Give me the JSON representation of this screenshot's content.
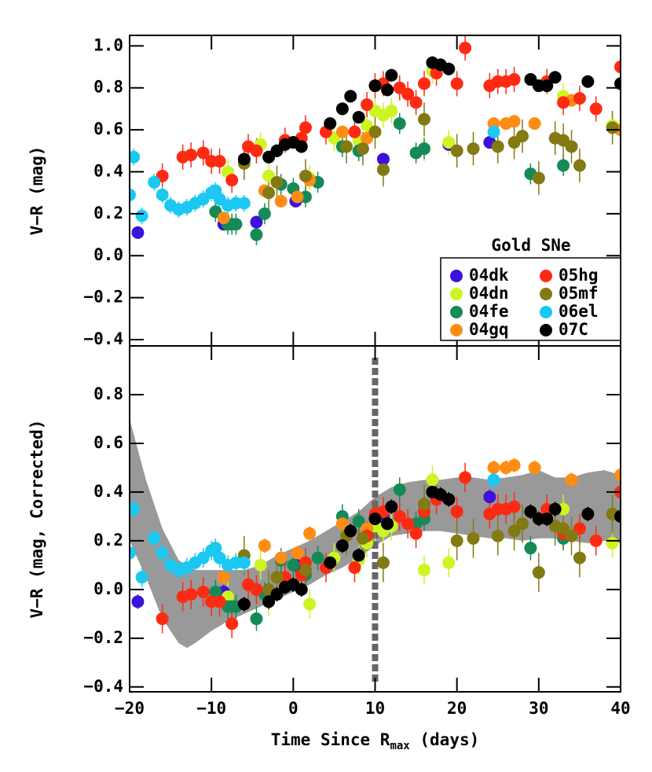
{
  "chart_data": [
    {
      "type": "scatter",
      "ylabel": "V−R (mag)",
      "xlim": [
        -20,
        40
      ],
      "xticks": [
        -20,
        -10,
        0,
        10,
        20,
        30,
        40
      ],
      "xtick_labels": false,
      "ylim": [
        -0.43,
        1.05
      ],
      "yticks": [
        {
          "value": -0.4,
          "label": "−0.4"
        },
        {
          "value": -0.2,
          "label": "−0.2"
        },
        {
          "value": 0,
          "label": "0.0"
        },
        0.2,
        0.4,
        0.6,
        0.8,
        {
          "value": 1,
          "label": "1.0"
        }
      ],
      "legend_title": "Gold SNe",
      "legend": "lower right",
      "series": [
        {
          "name": "04dk",
          "color": "#3c12dc",
          "error": 0.03,
          "x": [
            -19,
            -8.5,
            -4.5,
            0.3,
            11,
            16,
            19,
            24
          ],
          "values": [
            0.11,
            0.15,
            0.16,
            0.26,
            0.46,
            0.51,
            0.53,
            0.54
          ]
        },
        {
          "name": "04dn",
          "color": "#ccf522",
          "error": 0.06,
          "x": [
            -8,
            -4,
            -3,
            2,
            5,
            8,
            9,
            10,
            11,
            12,
            16,
            17,
            19,
            33,
            39
          ],
          "values": [
            0.4,
            0.53,
            0.38,
            0.37,
            0.56,
            0.55,
            0.62,
            0.69,
            0.67,
            0.69,
            0.51,
            0.88,
            0.54,
            0.76,
            0.62
          ]
        },
        {
          "name": "04fe",
          "color": "#168a56",
          "error": 0.05,
          "x": [
            -9.5,
            -8,
            -7.5,
            -7,
            -4.5,
            -3.5,
            -1.5,
            0,
            1.5,
            3,
            6,
            8,
            13,
            15,
            16,
            29,
            33
          ],
          "values": [
            0.21,
            0.15,
            0.15,
            0.15,
            0.1,
            0.2,
            0.34,
            0.32,
            0.28,
            0.35,
            0.52,
            0.5,
            0.63,
            0.49,
            0.51,
            0.39,
            0.43
          ]
        },
        {
          "name": "04gq",
          "color": "#ff8c14",
          "error": 0.03,
          "x": [
            -8.5,
            -3.5,
            -1.5,
            0.5,
            2,
            6,
            9,
            24.5,
            26,
            27,
            29.5,
            34,
            40
          ],
          "values": [
            0.18,
            0.31,
            0.26,
            0.28,
            0.36,
            0.59,
            0.56,
            0.63,
            0.63,
            0.64,
            0.63,
            0.74,
            0.6
          ]
        },
        {
          "name": "05hg",
          "color": "#ff2a12",
          "error": 0.06,
          "x": [
            -16,
            -13.5,
            -12.5,
            -11,
            -10,
            -9,
            -7.5,
            -5.5,
            -4.5,
            -1,
            1,
            1.5,
            4,
            7.5,
            9,
            10,
            11,
            13,
            14,
            15,
            16,
            17.5,
            20,
            21,
            24,
            25,
            26,
            27,
            31,
            33,
            35,
            37,
            40
          ],
          "values": [
            0.38,
            0.47,
            0.48,
            0.49,
            0.45,
            0.45,
            0.36,
            0.52,
            0.5,
            0.55,
            0.56,
            0.61,
            0.59,
            0.59,
            0.72,
            0.81,
            0.82,
            0.8,
            0.77,
            0.73,
            0.82,
            0.87,
            0.82,
            0.99,
            0.81,
            0.83,
            0.83,
            0.84,
            0.83,
            0.73,
            0.75,
            0.7,
            0.9
          ]
        },
        {
          "name": "05mf",
          "color": "#827a12",
          "error": 0.08,
          "x": [
            -6,
            -3,
            -2,
            1.5,
            6.5,
            8.5,
            10,
            11,
            16,
            20,
            22,
            25,
            27,
            28,
            30,
            32,
            33,
            34,
            35,
            39
          ],
          "values": [
            0.44,
            0.3,
            0.35,
            0.38,
            0.52,
            0.51,
            0.59,
            0.41,
            0.65,
            0.5,
            0.51,
            0.52,
            0.54,
            0.57,
            0.37,
            0.56,
            0.55,
            0.52,
            0.43,
            0.61
          ]
        },
        {
          "name": "06el",
          "color": "#1ac8f2",
          "error": 0.04,
          "x": [
            -20,
            -19.5,
            -18.5,
            -17,
            -16,
            -15,
            -14,
            -13,
            -12,
            -11,
            -10,
            -9.5,
            -9,
            -8,
            -7,
            -6,
            24.5
          ],
          "values": [
            0.29,
            0.47,
            0.19,
            0.35,
            0.29,
            0.24,
            0.22,
            0.23,
            0.25,
            0.27,
            0.3,
            0.31,
            0.27,
            0.24,
            0.25,
            0.25,
            0.59
          ]
        },
        {
          "name": "07C",
          "color": "#000000",
          "error": 0.03,
          "x": [
            -6,
            -3,
            -2,
            -1,
            0,
            1,
            4.5,
            6,
            7,
            8,
            10,
            11.5,
            12,
            17,
            18,
            19,
            29,
            30,
            31,
            32,
            36,
            40
          ],
          "values": [
            0.46,
            0.47,
            0.5,
            0.53,
            0.54,
            0.52,
            0.63,
            0.7,
            0.76,
            0.66,
            0.81,
            0.79,
            0.86,
            0.92,
            0.91,
            0.89,
            0.84,
            0.81,
            0.81,
            0.85,
            0.83,
            0.82
          ]
        }
      ]
    },
    {
      "type": "scatter",
      "ylabel": "V−R (mag, Corrected)",
      "xlabel": [
        "Time Since R",
        "max",
        " (days)"
      ],
      "xlim": [
        -20,
        40
      ],
      "xticks": [
        {
          "value": -20,
          "label": "−20"
        },
        {
          "value": -10,
          "label": "−10"
        },
        0,
        10,
        20,
        30,
        40
      ],
      "xtick_labels": true,
      "ylim": [
        -0.42,
        1.0
      ],
      "yticks": [
        {
          "value": -0.4,
          "label": "−0.4"
        },
        {
          "value": -0.2,
          "label": "−0.2"
        },
        {
          "value": 0,
          "label": "0.0"
        },
        0.2,
        0.4,
        0.6,
        0.8
      ],
      "vline": 10,
      "band": {
        "color": "#999999",
        "x": [
          -20,
          -18,
          -16,
          -14,
          -13,
          -12,
          -10,
          -8,
          -6,
          -4,
          -2,
          0,
          2,
          4,
          6,
          8,
          10,
          12,
          14,
          16,
          18,
          20,
          22,
          24,
          26,
          28,
          30,
          32,
          34,
          36,
          38,
          40
        ],
        "upper": [
          0.7,
          0.45,
          0.25,
          0.12,
          0.1,
          0.08,
          0.08,
          0.08,
          0.08,
          0.1,
          0.14,
          0.17,
          0.2,
          0.24,
          0.28,
          0.32,
          0.38,
          0.42,
          0.44,
          0.45,
          0.45,
          0.46,
          0.46,
          0.45,
          0.46,
          0.47,
          0.49,
          0.46,
          0.46,
          0.48,
          0.49,
          0.47
        ],
        "lower": [
          0.2,
          0.05,
          -0.12,
          -0.22,
          -0.24,
          -0.22,
          -0.17,
          -0.13,
          -0.1,
          -0.07,
          -0.04,
          -0.01,
          0.02,
          0.06,
          0.09,
          0.13,
          0.18,
          0.22,
          0.23,
          0.24,
          0.24,
          0.23,
          0.22,
          0.21,
          0.21,
          0.2,
          0.21,
          0.21,
          0.2,
          0.19,
          0.2,
          0.19
        ]
      },
      "series": [
        {
          "name": "04dk",
          "color": "#3c12dc",
          "error": 0.03,
          "x": [
            -19,
            -8.5,
            -4.5,
            0.3,
            11,
            16,
            19,
            24
          ],
          "values": [
            -0.05,
            -0.01,
            0.0,
            0.1,
            0.3,
            0.35,
            0.37,
            0.38
          ]
        },
        {
          "name": "04dn",
          "color": "#ccf522",
          "error": 0.06,
          "x": [
            -8,
            -4,
            -3,
            2,
            5,
            8,
            9,
            10,
            11,
            12,
            16,
            17,
            19,
            33,
            39
          ],
          "values": [
            -0.03,
            0.1,
            -0.05,
            -0.06,
            0.13,
            0.12,
            0.19,
            0.26,
            0.24,
            0.26,
            0.08,
            0.45,
            0.11,
            0.33,
            0.19
          ]
        },
        {
          "name": "04fe",
          "color": "#168a56",
          "error": 0.05,
          "x": [
            -9.5,
            -8,
            -7.5,
            -7,
            -4.5,
            -3.5,
            -1.5,
            0,
            1.5,
            3,
            6,
            8,
            13,
            15,
            16,
            29,
            33
          ],
          "values": [
            -0.01,
            -0.07,
            -0.07,
            -0.07,
            -0.12,
            -0.02,
            0.12,
            0.1,
            0.06,
            0.13,
            0.3,
            0.28,
            0.41,
            0.27,
            0.29,
            0.17,
            0.21
          ]
        },
        {
          "name": "04gq",
          "color": "#ff8c14",
          "error": 0.03,
          "x": [
            -8.5,
            -3.5,
            -1.5,
            0.5,
            2,
            6,
            9,
            24.5,
            26,
            27,
            29.5,
            34,
            40
          ],
          "values": [
            0.05,
            0.18,
            0.13,
            0.15,
            0.23,
            0.27,
            0.25,
            0.5,
            0.5,
            0.51,
            0.5,
            0.45,
            0.47
          ]
        },
        {
          "name": "05hg",
          "color": "#ff2a12",
          "error": 0.06,
          "x": [
            -16,
            -13.5,
            -12.5,
            -11,
            -10,
            -9,
            -7.5,
            -5.5,
            -4.5,
            -1,
            1,
            1.5,
            4,
            7.5,
            9,
            10,
            11,
            13,
            14,
            15,
            16,
            17.5,
            20,
            21,
            24,
            25,
            26,
            27,
            31,
            33,
            35,
            37,
            40
          ],
          "values": [
            -0.12,
            -0.03,
            -0.02,
            -0.01,
            -0.05,
            -0.05,
            -0.14,
            0.02,
            0.0,
            0.05,
            0.06,
            0.11,
            0.09,
            0.09,
            0.22,
            0.31,
            0.32,
            0.3,
            0.27,
            0.23,
            0.32,
            0.37,
            0.32,
            0.46,
            0.31,
            0.33,
            0.33,
            0.34,
            0.33,
            0.23,
            0.25,
            0.2,
            0.4
          ]
        },
        {
          "name": "05mf",
          "color": "#827a12",
          "error": 0.08,
          "x": [
            -6,
            -3,
            -2,
            1.5,
            6.5,
            8.5,
            10,
            11,
            16,
            20,
            22,
            25,
            27,
            28,
            30,
            32,
            33,
            34,
            35,
            39
          ],
          "values": [
            0.14,
            0.0,
            0.05,
            0.08,
            0.22,
            0.21,
            0.29,
            0.11,
            0.35,
            0.2,
            0.21,
            0.22,
            0.24,
            0.27,
            0.07,
            0.26,
            0.25,
            0.22,
            0.13,
            0.31
          ]
        },
        {
          "name": "06el",
          "color": "#1ac8f2",
          "error": 0.04,
          "x": [
            -20,
            -19.5,
            -18.5,
            -17,
            -16,
            -15,
            -14,
            -13,
            -12,
            -11,
            -10,
            -9.5,
            -9,
            -8,
            -7,
            -6,
            24.5
          ],
          "values": [
            0.15,
            0.33,
            0.05,
            0.21,
            0.15,
            0.1,
            0.08,
            0.09,
            0.11,
            0.13,
            0.16,
            0.17,
            0.13,
            0.1,
            0.11,
            0.11,
            0.45
          ]
        },
        {
          "name": "07C",
          "color": "#000000",
          "error": 0.03,
          "x": [
            -6,
            -3,
            -2,
            -1,
            0,
            1,
            4.5,
            6,
            7,
            8,
            10,
            11.5,
            12,
            17,
            18,
            19,
            29,
            30,
            31,
            32,
            36,
            40
          ],
          "values": [
            -0.06,
            -0.05,
            -0.02,
            0.01,
            0.02,
            0.0,
            0.11,
            0.18,
            0.24,
            0.14,
            0.29,
            0.27,
            0.34,
            0.4,
            0.39,
            0.37,
            0.32,
            0.29,
            0.29,
            0.33,
            0.31,
            0.3
          ]
        }
      ]
    }
  ]
}
